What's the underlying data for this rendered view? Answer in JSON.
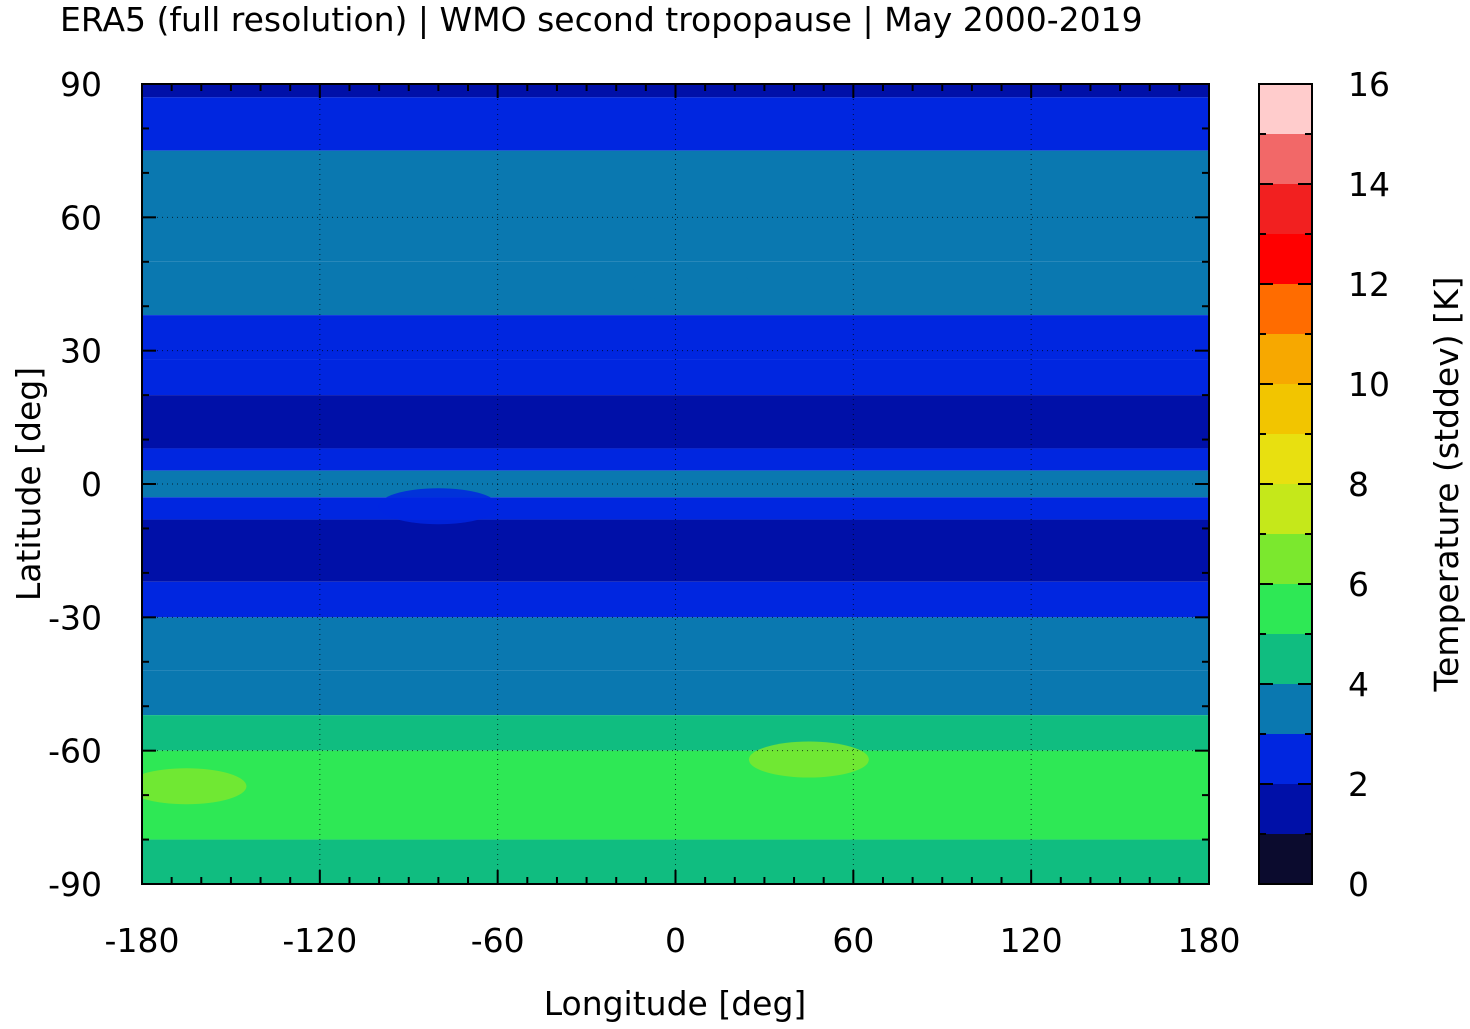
{
  "title": "ERA5 (full resolution) | WMO second tropopause | May 2000-2019",
  "chart_data": {
    "type": "heatmap",
    "title": "ERA5 (full resolution) | WMO second tropopause | May 2000-2019",
    "xlabel": "Longitude [deg]",
    "ylabel": "Latitude [deg]",
    "xlim": [
      -180,
      180
    ],
    "ylim": [
      -90,
      90
    ],
    "xticks": [
      "-180",
      "-120",
      "-60",
      "0",
      "60",
      "120",
      "180"
    ],
    "yticks": [
      "90",
      "60",
      "30",
      "0",
      "-30",
      "-60",
      "-90"
    ],
    "xtick_values": [
      -180,
      -120,
      -60,
      0,
      60,
      120,
      180
    ],
    "ytick_values": [
      90,
      60,
      30,
      0,
      -30,
      -60,
      -90
    ],
    "grid": true,
    "colorbar": {
      "label": "Temperature (stddev) [K]",
      "range": [
        0,
        16
      ],
      "ticks": [
        "0",
        "2",
        "4",
        "6",
        "8",
        "10",
        "12",
        "14",
        "16"
      ],
      "tick_values": [
        0,
        2,
        4,
        6,
        8,
        10,
        12,
        14,
        16
      ],
      "levels": [
        {
          "from": 0,
          "to": 1,
          "color": "#0b0b2e"
        },
        {
          "from": 1,
          "to": 2,
          "color": "#0010a8"
        },
        {
          "from": 2,
          "to": 3,
          "color": "#0026e0"
        },
        {
          "from": 3,
          "to": 4,
          "color": "#0a78b0"
        },
        {
          "from": 4,
          "to": 5,
          "color": "#10bd80"
        },
        {
          "from": 5,
          "to": 6,
          "color": "#2ee855"
        },
        {
          "from": 6,
          "to": 7,
          "color": "#7be82e"
        },
        {
          "from": 7,
          "to": 8,
          "color": "#c5e81a"
        },
        {
          "from": 8,
          "to": 9,
          "color": "#e8e010"
        },
        {
          "from": 9,
          "to": 10,
          "color": "#f2c500"
        },
        {
          "from": 10,
          "to": 11,
          "color": "#f7a800"
        },
        {
          "from": 11,
          "to": 12,
          "color": "#ff6c00"
        },
        {
          "from": 12,
          "to": 13,
          "color": "#ff0000"
        },
        {
          "from": 13,
          "to": 14,
          "color": "#f22020"
        },
        {
          "from": 14,
          "to": 15,
          "color": "#f26868"
        },
        {
          "from": 15,
          "to": 16,
          "color": "#ffcccc"
        }
      ]
    },
    "zonal_bands": [
      {
        "lat_from": 87,
        "lat_to": 90,
        "value": 1.5
      },
      {
        "lat_from": 75,
        "lat_to": 87,
        "value": 2.5
      },
      {
        "lat_from": 50,
        "lat_to": 75,
        "value": 3.5
      },
      {
        "lat_from": 38,
        "lat_to": 50,
        "value": 3.5
      },
      {
        "lat_from": 28,
        "lat_to": 38,
        "value": 2.5
      },
      {
        "lat_from": 20,
        "lat_to": 28,
        "value": 2.5
      },
      {
        "lat_from": 8,
        "lat_to": 20,
        "value": 1.5
      },
      {
        "lat_from": 3,
        "lat_to": 8,
        "value": 2.5
      },
      {
        "lat_from": -3,
        "lat_to": 3,
        "value": 3.5
      },
      {
        "lat_from": -8,
        "lat_to": -3,
        "value": 2.5
      },
      {
        "lat_from": -22,
        "lat_to": -8,
        "value": 1.5
      },
      {
        "lat_from": -30,
        "lat_to": -22,
        "value": 2.5
      },
      {
        "lat_from": -42,
        "lat_to": -30,
        "value": 3.5
      },
      {
        "lat_from": -52,
        "lat_to": -42,
        "value": 3.5
      },
      {
        "lat_from": -60,
        "lat_to": -52,
        "value": 4.5
      },
      {
        "lat_from": -72,
        "lat_to": -60,
        "value": 5.5
      },
      {
        "lat_from": -80,
        "lat_to": -72,
        "value": 5.5
      },
      {
        "lat_from": -90,
        "lat_to": -80,
        "value": 4.5
      }
    ],
    "highlights": [
      {
        "lon": -165,
        "lat": -68,
        "value": 6.5
      },
      {
        "lon": 45,
        "lat": -62,
        "value": 6.5
      },
      {
        "lon": -80,
        "lat": -5,
        "value": 2.5
      },
      {
        "lon": 5,
        "lat": 45,
        "value": 3.5
      }
    ]
  }
}
